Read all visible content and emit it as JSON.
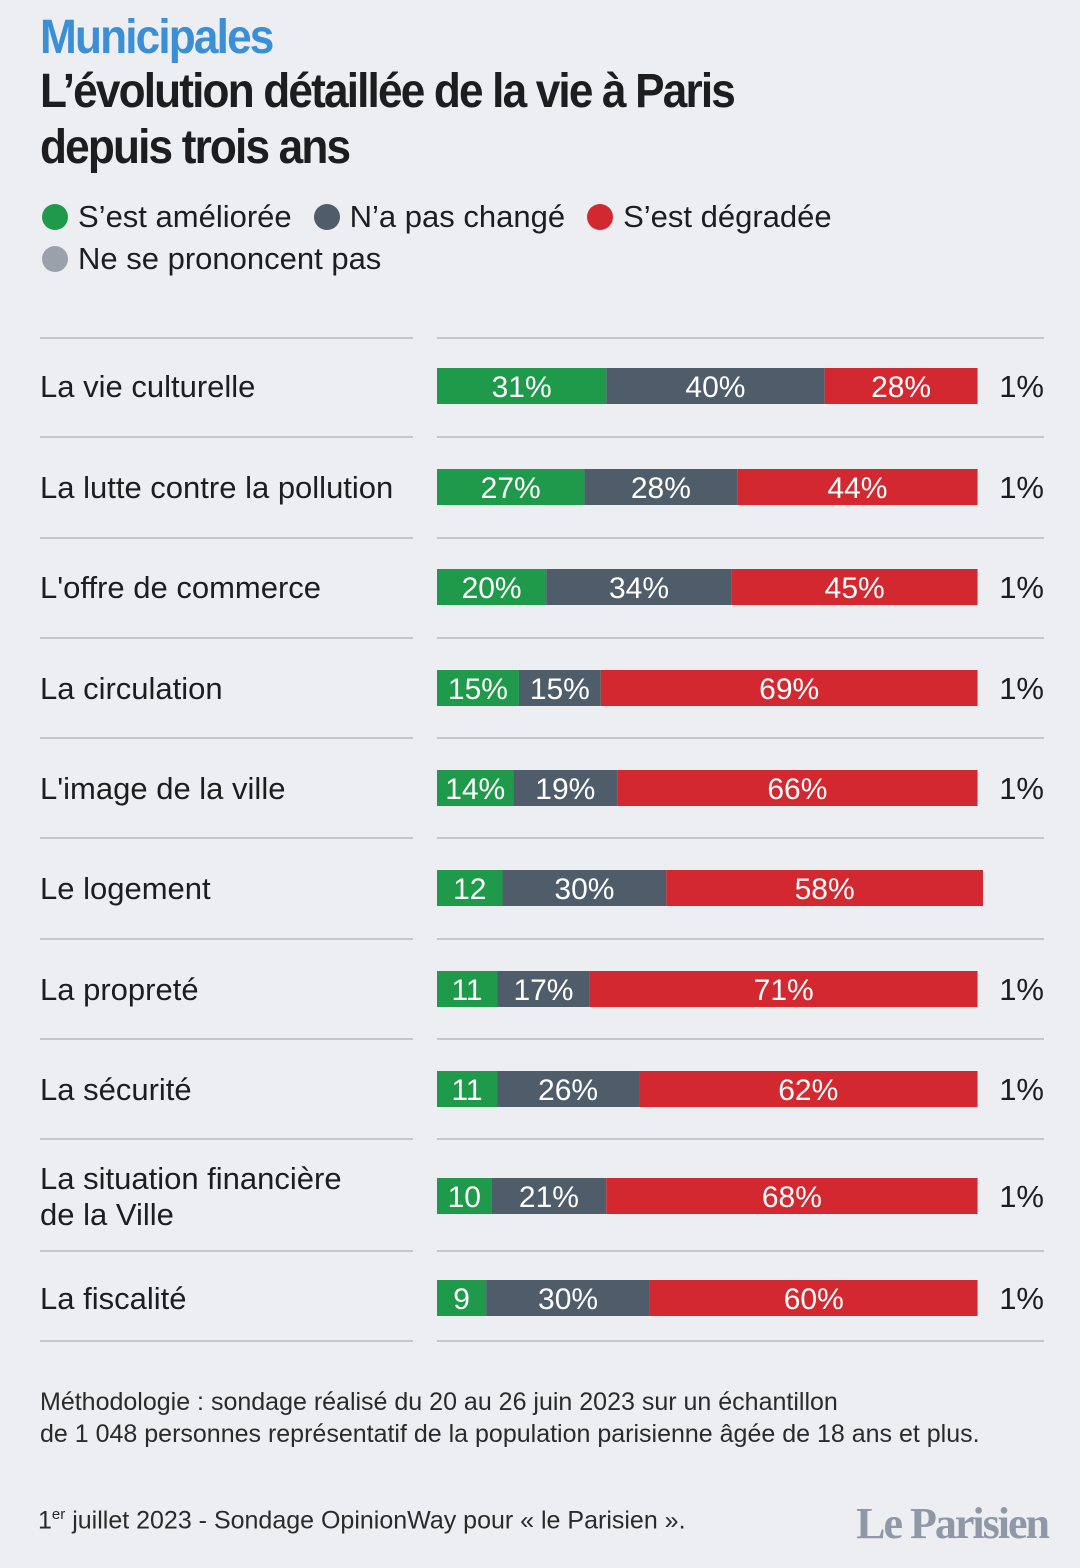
{
  "header": {
    "kicker": "Municipales",
    "title": "L’évolution détaillée de la vie à Paris depuis trois ans"
  },
  "legend": [
    {
      "label": "S’est améliorée",
      "color": "#1f9a4a"
    },
    {
      "label": "N’a pas changé",
      "color": "#4f5d6b"
    },
    {
      "label": "S’est dégradée",
      "color": "#d3282f"
    },
    {
      "label": "Ne se prononcent pas",
      "color": "#9aa1aa"
    }
  ],
  "chart_data": {
    "type": "bar",
    "orientation": "horizontal",
    "stacked": true,
    "categories": [
      [
        "La vie culturelle"
      ],
      [
        "La lutte contre la pollution"
      ],
      [
        "L'offre de commerce"
      ],
      [
        "La circulation"
      ],
      [
        "L'image de la ville"
      ],
      [
        "Le logement"
      ],
      [
        "La propreté"
      ],
      [
        "La sécurité"
      ],
      [
        "La situation financière",
        "de la Ville"
      ],
      [
        "La fiscalité"
      ]
    ],
    "series": [
      {
        "name": "S’est améliorée",
        "color": "#1f9a4a",
        "values": [
          31,
          27,
          20,
          15,
          14,
          12,
          11,
          11,
          10,
          9
        ],
        "labels": [
          "31%",
          "27%",
          "20%",
          "15%",
          "14%",
          "12",
          "11",
          "11",
          "10",
          "9"
        ]
      },
      {
        "name": "N’a pas changé",
        "color": "#4f5d6b",
        "values": [
          40,
          28,
          34,
          15,
          19,
          30,
          17,
          26,
          21,
          30
        ],
        "labels": [
          "40%",
          "28%",
          "34%",
          "15%",
          "19%",
          "30%",
          "17%",
          "26%",
          "21%",
          "30%"
        ]
      },
      {
        "name": "S’est dégradée",
        "color": "#d3282f",
        "values": [
          28,
          44,
          45,
          69,
          66,
          58,
          71,
          62,
          68,
          60
        ],
        "labels": [
          "28%",
          "44%",
          "45%",
          "69%",
          "66%",
          "58%",
          "71%",
          "62%",
          "68%",
          "60%"
        ]
      },
      {
        "name": "Ne se prononcent pas",
        "color": "#9aa1aa",
        "values": [
          1,
          1,
          1,
          1,
          1,
          0,
          1,
          1,
          1,
          1
        ],
        "labels": [
          "1%",
          "1%",
          "1%",
          "1%",
          "1%",
          "",
          "1%",
          "1%",
          "1%",
          "1%"
        ]
      }
    ],
    "unit": "%",
    "xlim": [
      0,
      100
    ],
    "grid": false
  },
  "methodology": [
    "Méthodologie : sondage réalisé du 20 au 26 juin 2023 sur un échantillon",
    "de 1 048 personnes représentatif de la population parisienne âgée de 18 ans et plus."
  ],
  "footer": {
    "day": "1",
    "day_sup": "er",
    "source": " juillet 2023 - Sondage OpinionWay pour « le Parisien »."
  },
  "logo": "Le Parisien"
}
